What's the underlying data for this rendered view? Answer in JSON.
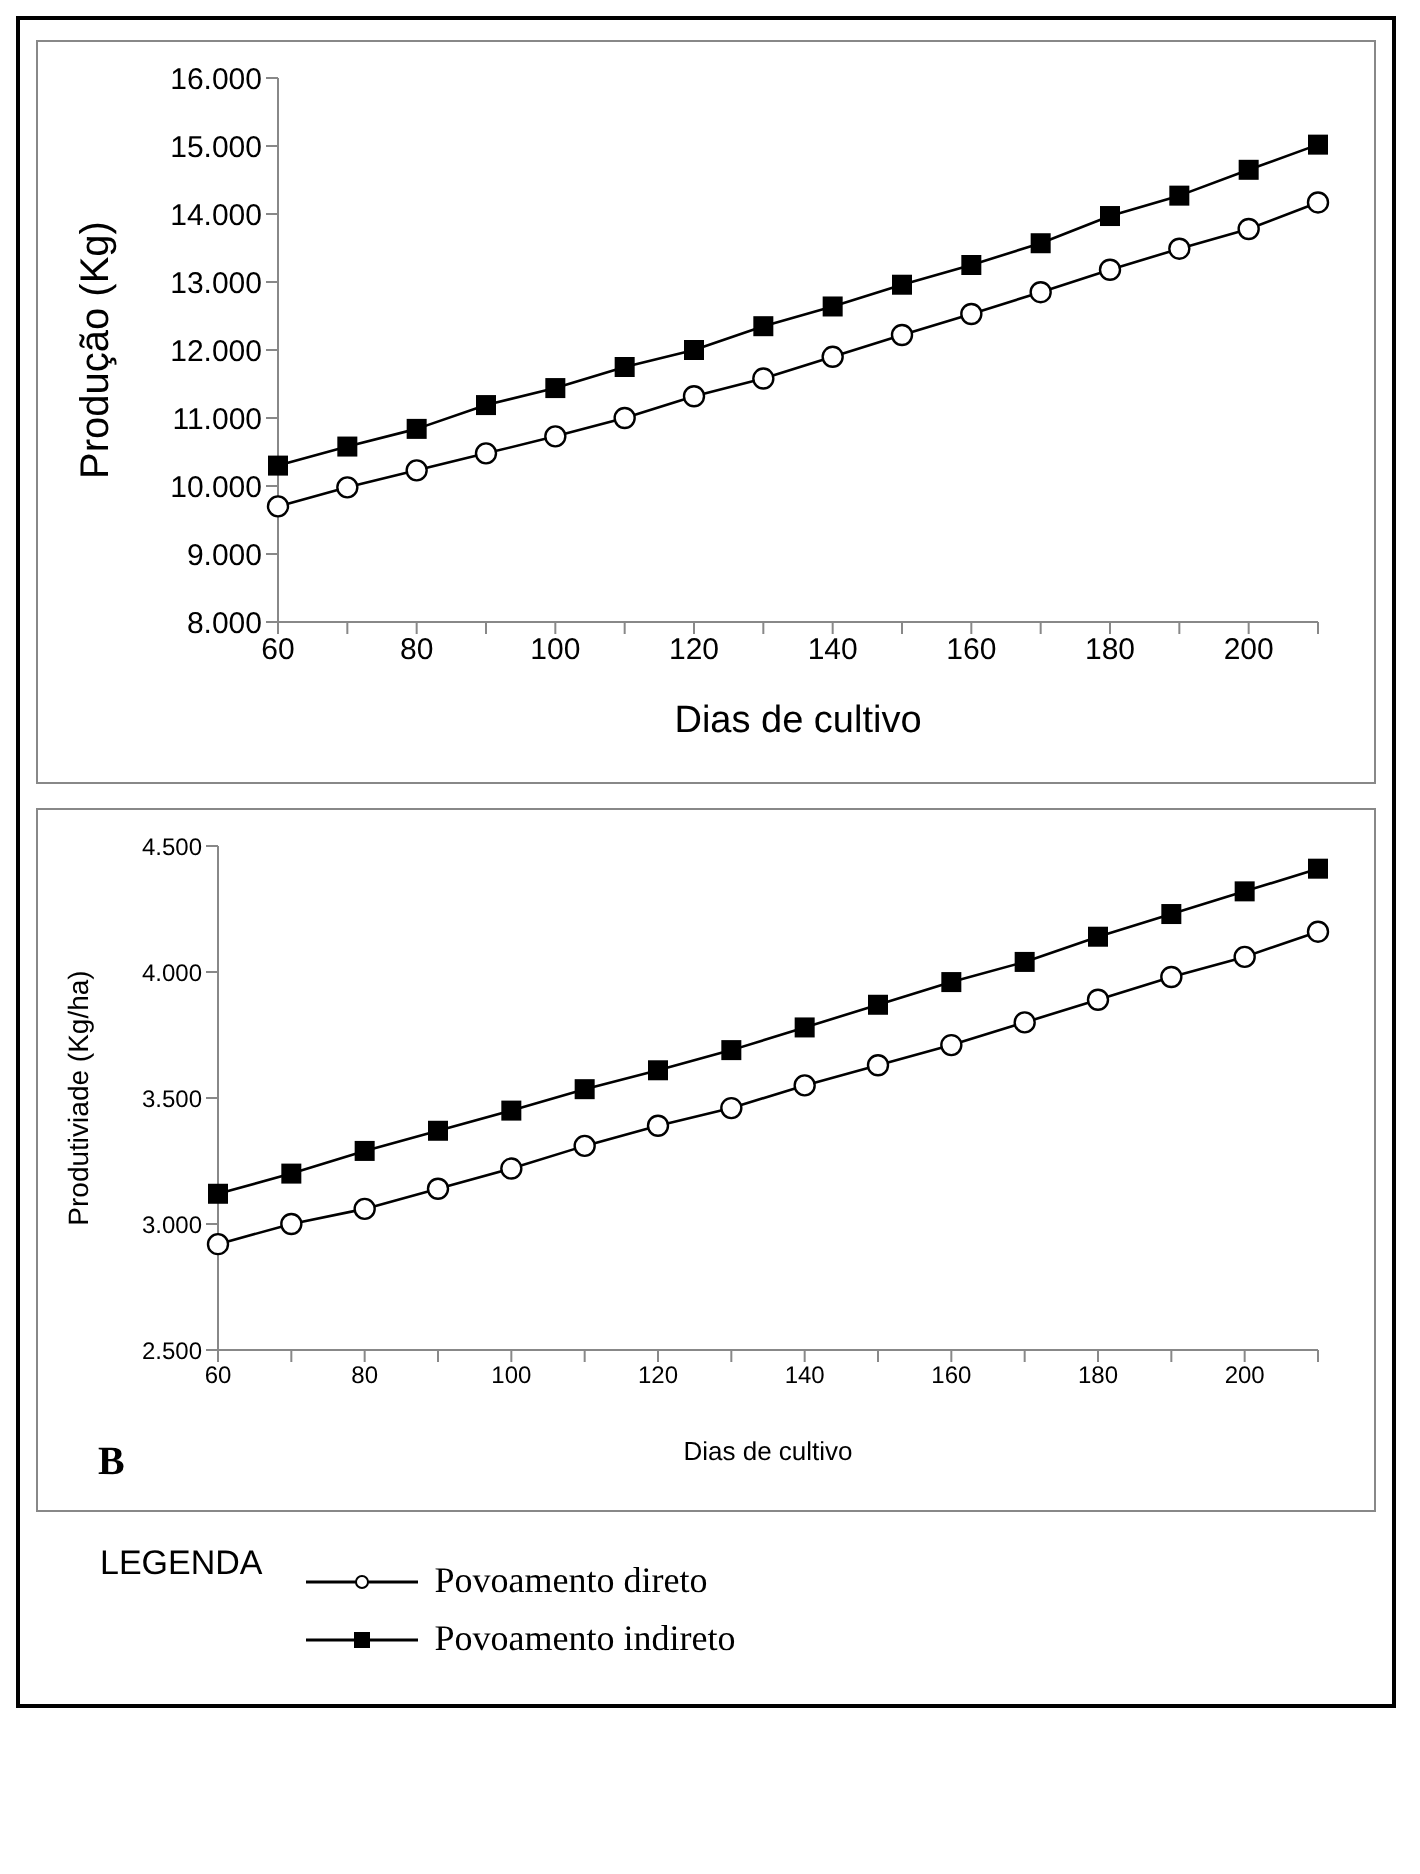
{
  "chart_data": [
    {
      "type": "line",
      "xlabel": "Dias de cultivo",
      "ylabel": "Produção (Kg)",
      "categories": [
        "60",
        null,
        "80",
        null,
        "100",
        null,
        "120",
        null,
        "140",
        null,
        "160",
        null,
        "180",
        null,
        "200",
        null
      ],
      "series": [
        {
          "color": "#000000",
          "marker": "circle",
          "values": [
            9700,
            9980,
            10230,
            10480,
            10730,
            11000,
            11320,
            11580,
            11900,
            12220,
            12530,
            12850,
            13180,
            13490,
            13780,
            14170
          ]
        },
        {
          "color": "#000000",
          "marker": "square",
          "values": [
            10300,
            10580,
            10840,
            11190,
            11440,
            11750,
            12000,
            12350,
            12640,
            12960,
            13250,
            13570,
            13970,
            14270,
            14650,
            15020
          ]
        }
      ],
      "ylim": [
        8000,
        16000
      ],
      "yticks": [
        {
          "value": 8000,
          "label": "8.000"
        },
        {
          "value": 9000,
          "label": "9.000"
        },
        {
          "value": 10000,
          "label": "10.000"
        },
        {
          "value": 11000,
          "label": "11.000"
        },
        {
          "value": 12000,
          "label": "12.000"
        },
        {
          "value": 13000,
          "label": "13.000"
        },
        {
          "value": 14000,
          "label": "14.000"
        },
        {
          "value": 15000,
          "label": "15.000"
        },
        {
          "value": 16000,
          "label": "16.000"
        }
      ],
      "legend": false
    },
    {
      "type": "line",
      "xlabel": "Dias de cultivo",
      "ylabel": "Produtiviade (Kg/ha)",
      "categories": [
        "60",
        null,
        "80",
        null,
        "100",
        null,
        "120",
        null,
        "140",
        null,
        "160",
        null,
        "180",
        null,
        "200",
        null
      ],
      "series": [
        {
          "name": "Povoamento direto",
          "color": "#000000",
          "marker": "circle",
          "values": [
            2920,
            3000,
            3060,
            3140,
            3220,
            3310,
            3390,
            3460,
            3550,
            3630,
            3710,
            3800,
            3890,
            3980,
            4060,
            4160
          ]
        },
        {
          "name": "Povoamento indireto",
          "color": "#000000",
          "marker": "square",
          "values": [
            3120,
            3200,
            3290,
            3370,
            3450,
            3535,
            3610,
            3690,
            3780,
            3870,
            3960,
            4040,
            4140,
            4230,
            4320,
            4410
          ]
        }
      ],
      "ylim": [
        2500,
        4500
      ],
      "yticks": [
        {
          "value": 2500,
          "label": "2.500"
        },
        {
          "value": 3000,
          "label": "3.000"
        },
        {
          "value": 3500,
          "label": "3.500"
        },
        {
          "value": 4000,
          "label": "4.000"
        },
        {
          "value": 4500,
          "label": "4.500"
        }
      ],
      "annotations": [
        "B"
      ],
      "legend": "bottom",
      "legend_title": "LEGENDA"
    }
  ]
}
